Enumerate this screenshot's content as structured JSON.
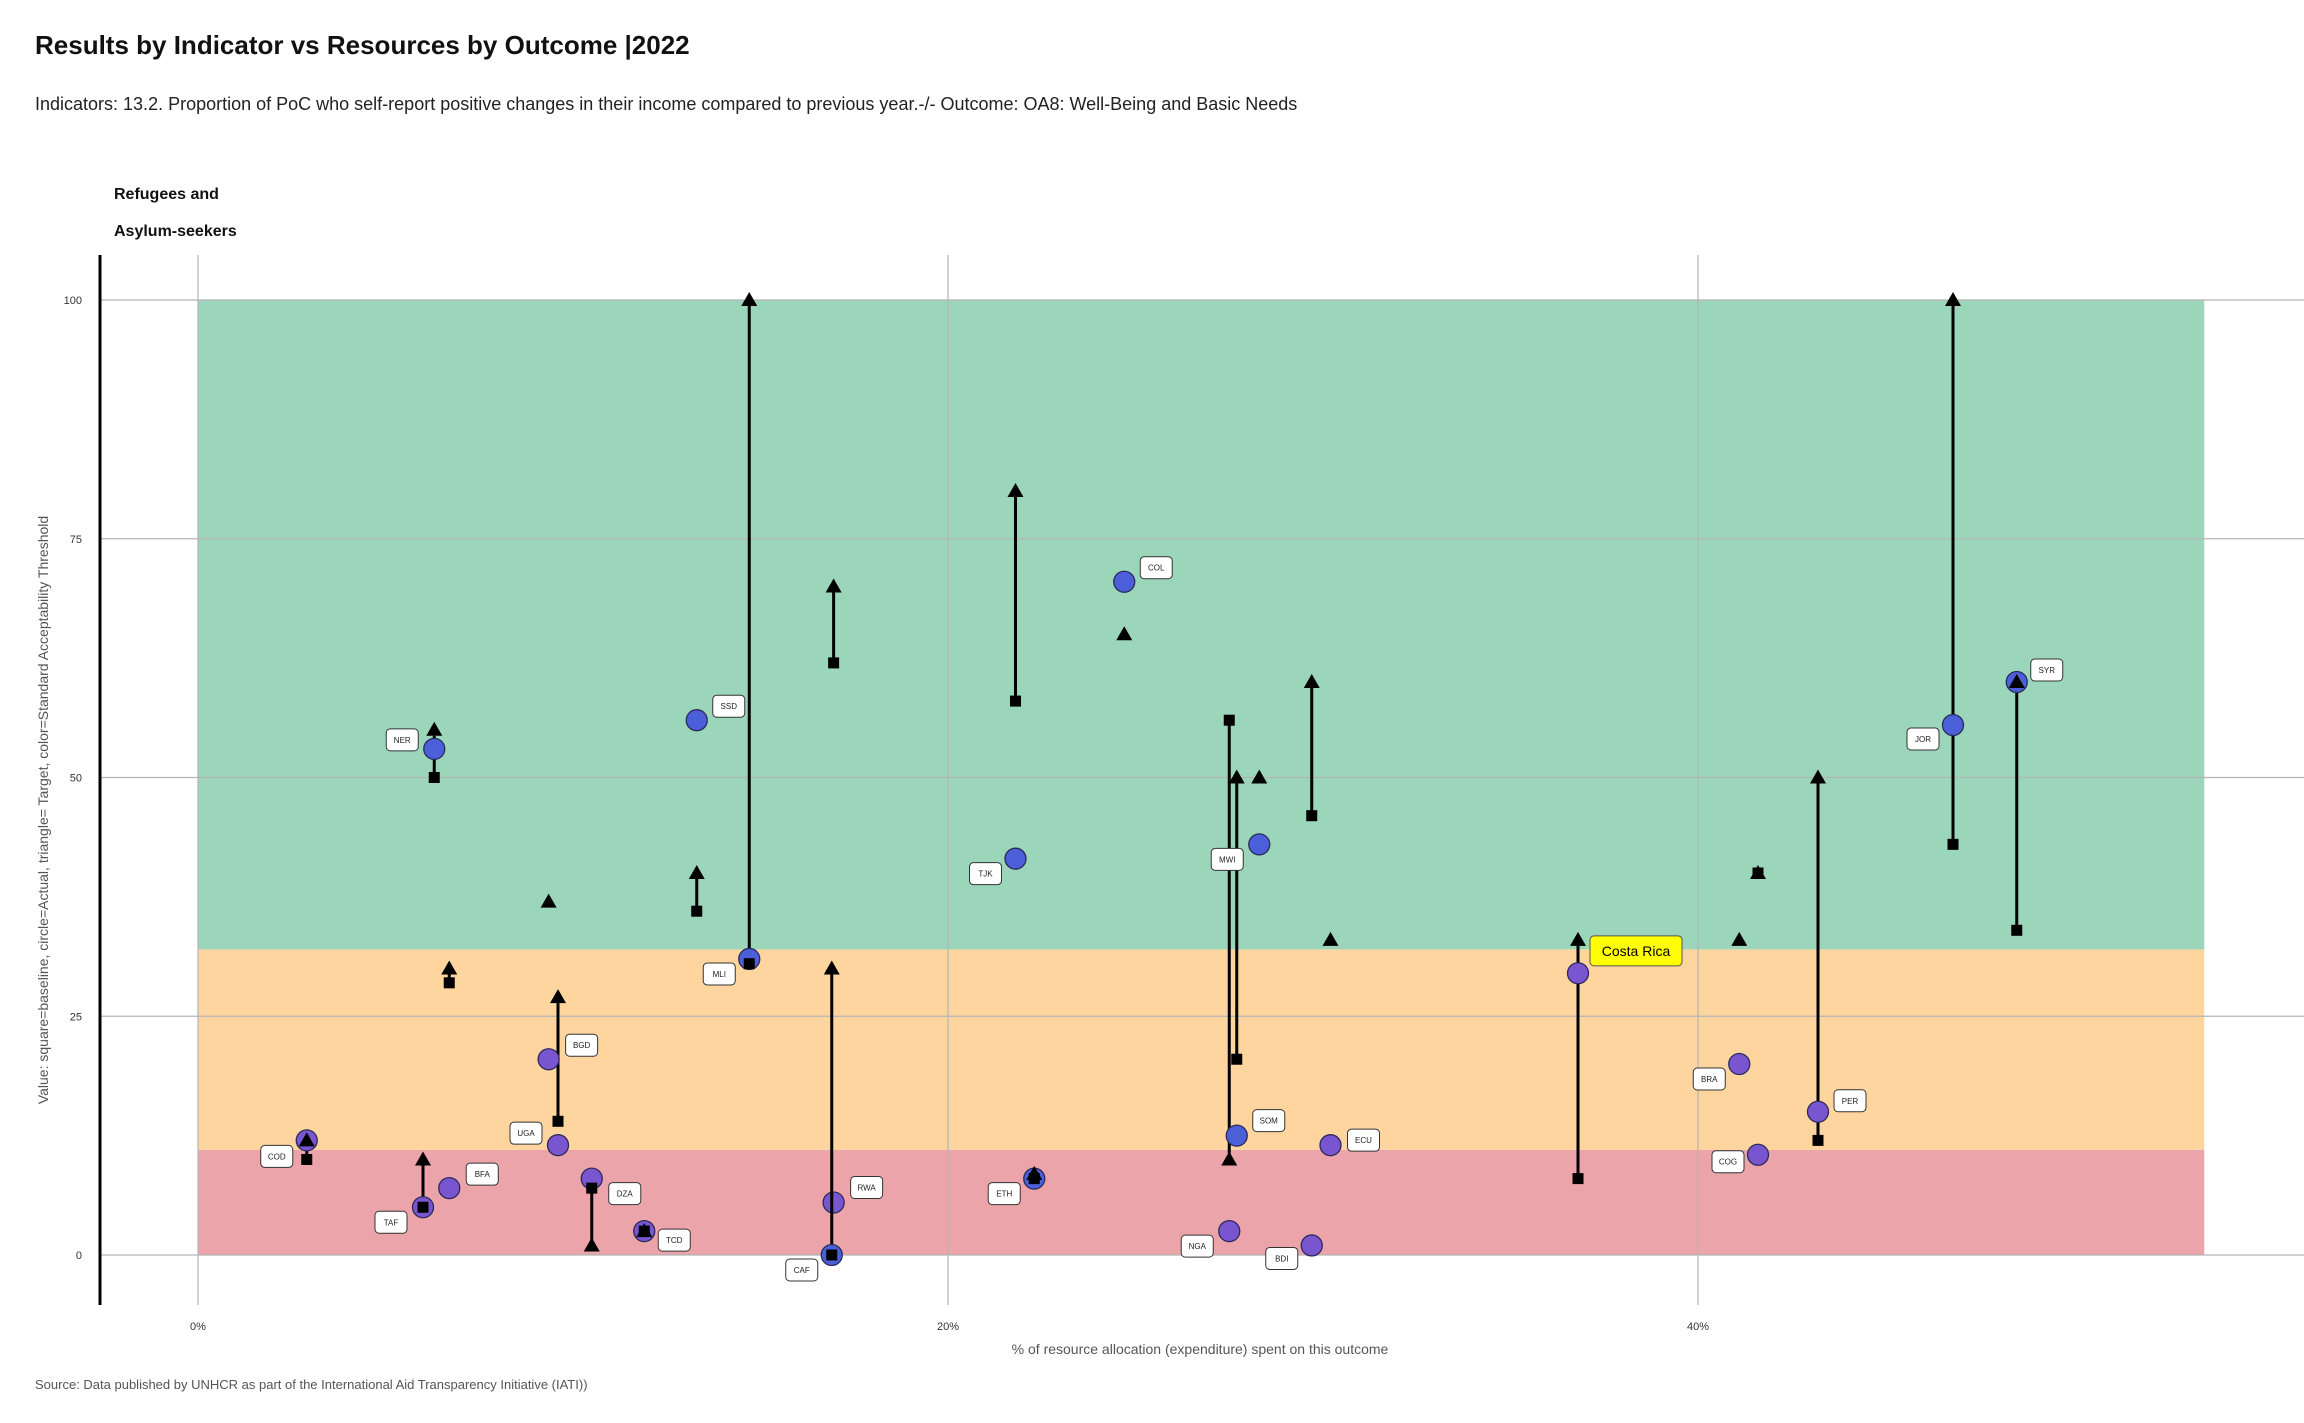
{
  "header": {
    "title": "Results  by Indicator  vs Resources  by Outcome |2022",
    "subtitle": "Indicators: 13.2. Proportion of PoC who self-report positive changes in their income compared to previous year.-/- Outcome: OA8: Well-Being and Basic Needs",
    "group_label_line1": "Refugees and",
    "group_label_line2": "Asylum-seekers"
  },
  "footer": {
    "source": "Source: Data published by UNHCR as part of the International Aid Transparency Initiative (IATI))"
  },
  "chart_data": {
    "type": "scatter",
    "xlabel": "% of resource allocation (expenditure) spent on this outcome",
    "ylabel": "Value: square=baseline, circle=Actual, triangle= Target, color=Standard Acceptability Threshold",
    "xlim": [
      -13.5,
      56.5
    ],
    "ylim": [
      -5,
      105
    ],
    "x_ticks": [
      {
        "value": 0,
        "label": "0%"
      },
      {
        "value": 20,
        "label": "20%"
      },
      {
        "value": 40,
        "label": "40%"
      }
    ],
    "y_ticks": [
      0,
      25,
      50,
      75,
      100
    ],
    "grid": true,
    "bands": [
      {
        "from": 0,
        "to": 11,
        "color": "#eba4aa"
      },
      {
        "from": 11,
        "to": 32,
        "color": "#fed49f"
      },
      {
        "from": 32,
        "to": 100,
        "color": "#9bd6bb"
      }
    ],
    "band_x_range": [
      0,
      53.5
    ],
    "colors": {
      "actual_blue": "#4b5fd8",
      "actual_purple": "#7a55d0",
      "marker": "#000000",
      "highlight_bg": "#ffff00"
    },
    "highlighted": "CRI",
    "countries": [
      {
        "code": "COD",
        "x": 2.9,
        "baseline": 10,
        "actual": 12,
        "target": 12,
        "color": "#7a55d0"
      },
      {
        "code": "TAF",
        "x": 6.0,
        "baseline": 5,
        "actual": 5,
        "target": 10,
        "color": "#7a55d0"
      },
      {
        "code": "BFA",
        "x": 6.7,
        "baseline": 28.5,
        "actual": 7,
        "target": 30,
        "color": "#7a55d0"
      },
      {
        "code": "NER",
        "x": 6.3,
        "baseline": 50,
        "actual": 53,
        "target": 55,
        "color": "#4b5fd8"
      },
      {
        "code": "UGA",
        "x": 9.6,
        "baseline": 14,
        "actual": 11.5,
        "target": 27,
        "color": "#7a55d0"
      },
      {
        "code": "BGD",
        "x": 9.35,
        "baseline": null,
        "actual": 20.5,
        "target": 37,
        "color": "#7a55d0"
      },
      {
        "code": "DZA",
        "x": 10.5,
        "baseline": 7,
        "actual": 8,
        "target": 1,
        "color": "#7a55d0"
      },
      {
        "code": "TCD",
        "x": 11.9,
        "baseline": 2.5,
        "actual": 2.5,
        "target": 2.5,
        "color": "#7a55d0"
      },
      {
        "code": "SSD",
        "x": 13.3,
        "baseline": 36,
        "actual": 56,
        "target": 40,
        "color": "#4b5fd8"
      },
      {
        "code": "MLI",
        "x": 14.7,
        "baseline": 30.5,
        "actual": 31,
        "target": 100,
        "color": "#4b5fd8"
      },
      {
        "code": "RWA",
        "x": 16.95,
        "baseline": 62,
        "actual": 5.5,
        "target": 70,
        "color": "#7a55d0"
      },
      {
        "code": "CAF",
        "x": 16.9,
        "baseline": 0,
        "actual": 0,
        "target": 30,
        "color": "#4b5fd8"
      },
      {
        "code": "TJK",
        "x": 21.8,
        "baseline": 58,
        "actual": 41.5,
        "target": 80,
        "color": "#4b5fd8"
      },
      {
        "code": "ETH",
        "x": 22.3,
        "baseline": 8,
        "actual": 8,
        "target": 8.5,
        "color": "#4b5fd8"
      },
      {
        "code": "COL",
        "x": 24.7,
        "baseline": null,
        "actual": 70.5,
        "target": 65,
        "color": "#4b5fd8"
      },
      {
        "code": "NGA",
        "x": 27.5,
        "baseline": 56,
        "actual": 2.5,
        "target": 10,
        "color": "#7a55d0"
      },
      {
        "code": "SOM",
        "x": 27.7,
        "baseline": 20.5,
        "actual": 12.5,
        "target": 50,
        "color": "#4b5fd8"
      },
      {
        "code": "MWI",
        "x": 28.3,
        "baseline": null,
        "actual": 43,
        "target": 50,
        "color": "#4b5fd8"
      },
      {
        "code": "BDI",
        "x": 29.7,
        "baseline": 46,
        "actual": 1,
        "target": 60,
        "color": "#7a55d0"
      },
      {
        "code": "ECU",
        "x": 30.2,
        "baseline": null,
        "actual": 11.5,
        "target": 33,
        "color": "#7a55d0"
      },
      {
        "code": "CRI",
        "label": "Costa Rica",
        "x": 36.8,
        "baseline": 8,
        "actual": 29.5,
        "target": 33,
        "color": "#7a55d0"
      },
      {
        "code": "BRA",
        "x": 41.1,
        "baseline": null,
        "actual": 20,
        "target": 33,
        "color": "#7a55d0"
      },
      {
        "code": "COG",
        "x": 41.6,
        "baseline": 40,
        "actual": 10.5,
        "target": 40,
        "color": "#7a55d0"
      },
      {
        "code": "PER",
        "x": 43.2,
        "baseline": 12,
        "actual": 15,
        "target": 50,
        "color": "#7a55d0"
      },
      {
        "code": "JOR",
        "x": 46.8,
        "baseline": 43,
        "actual": 55.5,
        "target": 100,
        "color": "#4b5fd8"
      },
      {
        "code": "SYR",
        "x": 48.5,
        "baseline": 34,
        "actual": 60,
        "target": 60,
        "color": "#4b5fd8"
      }
    ]
  }
}
